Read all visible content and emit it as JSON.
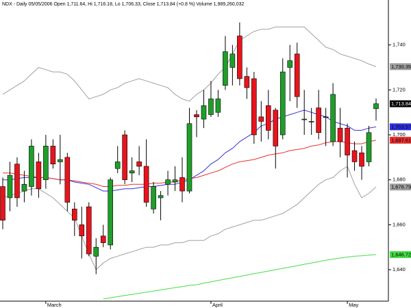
{
  "chart_data": {
    "type": "candlestick",
    "title": "NDX - Daily 05/05/2006 Open 1,711.64, Hi 1,716.18, Lo 1,706.33, Close 1,713.84 (+0.8 %) Volume 1,989,260,032",
    "categories": [
      null,
      null,
      null,
      null,
      null,
      null,
      "March",
      null,
      null,
      null,
      null,
      null,
      null,
      null,
      null,
      null,
      null,
      null,
      null,
      null,
      null,
      null,
      null,
      null,
      null,
      null,
      null,
      null,
      null,
      "April",
      null,
      null,
      null,
      null,
      null,
      null,
      null,
      null,
      null,
      null,
      null,
      null,
      null,
      null,
      null,
      null,
      null,
      null,
      "May",
      null,
      null,
      null,
      null
    ],
    "open": [
      1677,
      1672,
      1687,
      1675,
      1677,
      1688,
      1680,
      1695,
      1688,
      1690,
      1667,
      1660,
      1668,
      1646,
      1655,
      1651,
      1685,
      1700,
      1683,
      1688,
      1686,
      1667,
      1672,
      1678,
      1679,
      1681,
      1675,
      1709,
      1707,
      1709,
      1710,
      1722,
      1730,
      1744,
      1726,
      1725,
      1708,
      1713,
      1711,
      1700,
      1730,
      1736,
      1707,
      1706,
      1712,
      1708,
      1697,
      1703,
      1703,
      1693,
      1692,
      1688,
      1711.64
    ],
    "high": [
      1681,
      1688,
      1690,
      1684,
      1698,
      1692,
      1700,
      1698,
      1700,
      1692,
      1670,
      1668,
      1670,
      1654,
      1660,
      1681,
      1695,
      1702,
      1690,
      1695,
      1698,
      1679,
      1675,
      1684,
      1686,
      1690,
      1712,
      1711,
      1720,
      1724,
      1720,
      1744,
      1740,
      1750,
      1730,
      1728,
      1715,
      1720,
      1712,
      1734,
      1740,
      1741,
      1720,
      1712,
      1720,
      1712,
      1723,
      1712,
      1705,
      1697,
      1695,
      1704,
      1716.18
    ],
    "low": [
      1658,
      1666,
      1668,
      1670,
      1673,
      1672,
      1676,
      1685,
      1678,
      1666,
      1655,
      1645,
      1646,
      1638,
      1650,
      1649,
      1683,
      1678,
      1679,
      1682,
      1668,
      1665,
      1662,
      1673,
      1675,
      1670,
      1674,
      1699,
      1703,
      1708,
      1708,
      1720,
      1722,
      1722,
      1716,
      1696,
      1697,
      1698,
      1685,
      1698,
      1715,
      1712,
      1700,
      1700,
      1698,
      1695,
      1695,
      1690,
      1681,
      1684,
      1680,
      1686,
      1706.33
    ],
    "close": [
      1662,
      1682,
      1672,
      1678,
      1695,
      1676,
      1695,
      1687,
      1689,
      1670,
      1662,
      1655,
      1647,
      1650,
      1652,
      1680,
      1688,
      1680,
      1684,
      1686,
      1670,
      1677,
      1673,
      1680,
      1680,
      1675,
      1705,
      1708,
      1713,
      1716,
      1716,
      1737,
      1736,
      1725,
      1721,
      1700,
      1706,
      1702,
      1695,
      1728,
      1733,
      1717,
      1707,
      1706,
      1701,
      1708,
      1718,
      1697,
      1691,
      1688,
      1686,
      1701,
      1713.84
    ],
    "close_label": "1,713.84",
    "up_color": "#1f9e2a",
    "down_color": "#e8141c",
    "ylim": [
      1626,
      1760
    ],
    "yticks": [
      {
        "value": 1640,
        "label": "1,640"
      },
      {
        "value": 1660,
        "label": "1,660"
      },
      {
        "value": 1680,
        "label": "1,680"
      },
      {
        "value": 1700,
        "label": "1,700"
      },
      {
        "value": 1720,
        "label": "1,720"
      },
      {
        "value": 1740,
        "label": "1,740"
      }
    ],
    "lines": [
      {
        "color": "#a0a0a0",
        "end_label": "1,730.35",
        "values": [
          1718,
          1720,
          1722,
          1724,
          1727,
          1730,
          1729,
          1728,
          1728,
          1727,
          1724,
          1720,
          1716,
          1717,
          1718,
          1720,
          1721,
          1723,
          1724,
          1725,
          1724,
          1723,
          1722,
          1721,
          1718,
          1716,
          1715,
          1718,
          1720,
          1723,
          1727,
          1730,
          1736,
          1742,
          1744,
          1746,
          1747,
          1747,
          1748,
          1748,
          1748,
          1748,
          1748,
          1745,
          1742,
          1739,
          1738,
          1736,
          1735,
          1734,
          1733,
          1731.5,
          1730.35
        ]
      },
      {
        "color": "#a0a0a0",
        "end_label": "1,676.79",
        "values": [
          1672,
          1673,
          1674,
          1675,
          1676,
          1676,
          1674,
          1672,
          1669,
          1666,
          1663,
          1655,
          1647,
          1640,
          1643,
          1645,
          1646,
          1647,
          1648,
          1649,
          1650,
          1650,
          1651,
          1651,
          1652,
          1652,
          1653,
          1653,
          1653,
          1655,
          1656,
          1658,
          1659,
          1660,
          1661,
          1662,
          1662,
          1663,
          1664,
          1665,
          1667,
          1669,
          1672,
          1675,
          1678,
          1680,
          1681,
          1684,
          1686,
          1678,
          1672,
          1674,
          1676.79
        ]
      },
      {
        "color": "#3030e0",
        "end_label": "1,703.57",
        "values": [
          1680,
          1680,
          1680.5,
          1681,
          1681,
          1681,
          1681,
          1680.5,
          1680,
          1680,
          1679,
          1678.5,
          1678,
          1676.5,
          1675,
          1675,
          1675.5,
          1676,
          1676,
          1676.5,
          1677,
          1677,
          1677.5,
          1678,
          1678,
          1679,
          1680,
          1682,
          1684,
          1687,
          1689,
          1692,
          1694,
          1697,
          1699,
          1701,
          1704,
          1705,
          1707,
          1708,
          1709,
          1710,
          1711,
          1710,
          1709,
          1708,
          1706,
          1705,
          1704,
          1702,
          1702,
          1703,
          1703.57
        ]
      },
      {
        "color": "#e83030",
        "end_label": "1,697.61",
        "values": [
          1683,
          1683,
          1682.5,
          1682,
          1681.5,
          1681,
          1681,
          1680.5,
          1680,
          1680,
          1679.5,
          1679,
          1678.5,
          1678,
          1677,
          1677,
          1677.5,
          1677.5,
          1678,
          1678,
          1678,
          1678.5,
          1678.5,
          1679,
          1679,
          1680,
          1680.5,
          1681,
          1682,
          1683,
          1684,
          1685.5,
          1687,
          1688,
          1688.5,
          1689,
          1690,
          1691,
          1691.5,
          1692,
          1693,
          1693.5,
          1694,
          1695,
          1695.5,
          1696.5,
          1697,
          1697,
          1696.5,
          1696,
          1696,
          1697,
          1697.61
        ]
      },
      {
        "color": "#44dd44",
        "end_label": "1,646.72",
        "values": [
          null,
          null,
          null,
          null,
          null,
          null,
          null,
          null,
          null,
          null,
          null,
          null,
          null,
          null,
          1627,
          1627.5,
          1628,
          1628.5,
          1629,
          1629.5,
          1630,
          1630.5,
          1631,
          1631.5,
          1632,
          1632.5,
          1633,
          1633.3,
          1634,
          1634.6,
          1635.2,
          1635.8,
          1636.4,
          1637,
          1637.6,
          1638.2,
          1638.8,
          1639.4,
          1640,
          1640.6,
          1641.2,
          1641.8,
          1642.4,
          1643,
          1643.6,
          1644.2,
          1644.7,
          1645.2,
          1645.6,
          1646,
          1646.2,
          1646.5,
          1646.72
        ]
      }
    ]
  }
}
